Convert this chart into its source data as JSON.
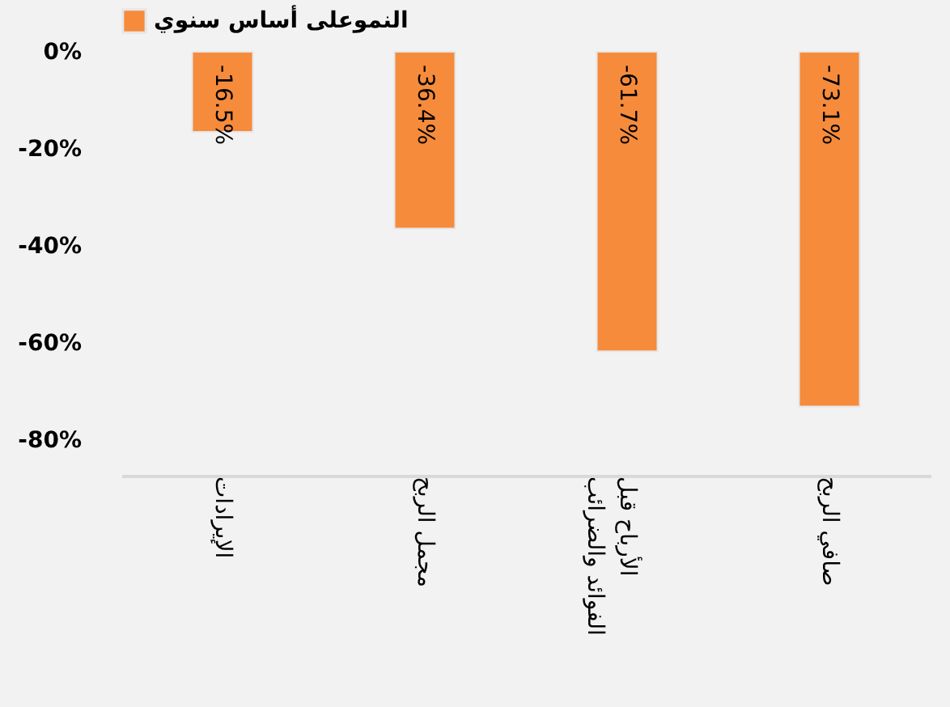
{
  "chart_data": {
    "type": "bar",
    "categories": [
      "الإيرادات",
      "مجمل الربح",
      "الأرباح قبل الفوائد والضرائب",
      "صافي الربح"
    ],
    "series": [
      {
        "name": "النموعلى أساس سنوي",
        "color": "#f68b3c",
        "values": [
          -16.5,
          -36.4,
          -61.7,
          -73.1
        ],
        "value_labels": [
          "-16.5%",
          "-36.4%",
          "-61.7%",
          "-73.1%"
        ]
      }
    ],
    "ylim": [
      -80,
      0
    ],
    "yticks": [
      {
        "value": 0,
        "label": "0%"
      },
      {
        "value": -20,
        "label": "-20%"
      },
      {
        "value": -40,
        "label": "-40%"
      },
      {
        "value": -60,
        "label": "-60%"
      },
      {
        "value": -80,
        "label": "-80%"
      }
    ],
    "grid": false,
    "legend": "top"
  }
}
